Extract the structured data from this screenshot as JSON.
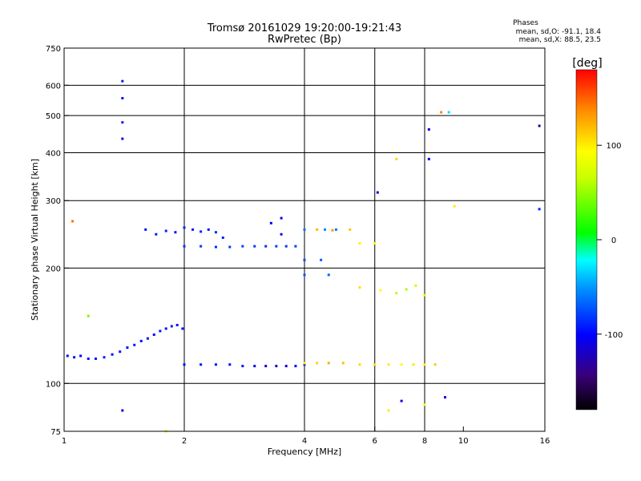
{
  "chart_data": {
    "type": "scatter",
    "title": "Tromsø 20161029 19:20:00-19:21:43",
    "subtitle": "RwPretec (Bp)",
    "xlabel": "Frequency [MHz]",
    "ylabel": "Stationary phase Virtual Height [km]",
    "x_scale": "log2",
    "y_scale": "log",
    "xlim": [
      1,
      16
    ],
    "ylim": [
      75,
      750
    ],
    "x_ticks": [
      1,
      2,
      4,
      6,
      8,
      10,
      16
    ],
    "y_ticks": [
      75,
      100,
      200,
      300,
      400,
      500,
      600,
      750
    ],
    "x_grid": [
      2,
      4,
      6,
      8
    ],
    "y_grid": [
      100,
      200,
      300,
      400,
      500,
      600
    ],
    "grid": true,
    "stats": {
      "heading": "Phases",
      "line_o": "mean, sd,O: -91.1, 18.4",
      "line_x": "mean, sd,X:  88.5, 23.5"
    },
    "colorbar": {
      "label": "[deg]",
      "range": [
        -180,
        180
      ],
      "ticks": [
        "100",
        "0",
        "-100"
      ],
      "tick_values": [
        100,
        0,
        -100
      ],
      "colormap": "rainbow"
    },
    "series": [
      {
        "trace": "O-mode base trace",
        "points": [
          [
            1.02,
            118,
            -96
          ],
          [
            1.06,
            117,
            -94
          ],
          [
            1.1,
            118,
            -100
          ],
          [
            1.15,
            116,
            -97
          ],
          [
            1.2,
            116,
            -95
          ],
          [
            1.26,
            117,
            -90
          ],
          [
            1.32,
            119,
            -98
          ],
          [
            1.38,
            121,
            -93
          ],
          [
            1.44,
            124,
            -99
          ],
          [
            1.5,
            126,
            -92
          ],
          [
            1.56,
            129,
            -96
          ],
          [
            1.62,
            131,
            -94
          ],
          [
            1.68,
            134,
            -97
          ],
          [
            1.74,
            137,
            -93
          ],
          [
            1.8,
            139,
            -95
          ],
          [
            1.86,
            141,
            -91
          ],
          [
            1.92,
            142,
            -98
          ],
          [
            1.98,
            139,
            -94
          ],
          [
            2.0,
            112,
            -97
          ],
          [
            2.2,
            112,
            -95
          ],
          [
            2.4,
            112,
            -93
          ],
          [
            2.6,
            112,
            -96
          ],
          [
            2.8,
            111,
            -94
          ],
          [
            3.0,
            111,
            -104
          ],
          [
            3.2,
            111,
            -115
          ],
          [
            3.4,
            111,
            -120
          ],
          [
            3.6,
            111,
            -112
          ],
          [
            3.8,
            111,
            -100
          ],
          [
            4.0,
            112,
            -94
          ]
        ]
      },
      {
        "trace": "X-mode base trace",
        "points": [
          [
            4.0,
            113,
            100
          ],
          [
            4.3,
            113,
            110
          ],
          [
            4.6,
            113,
            125
          ],
          [
            5.0,
            113,
            118
          ],
          [
            5.5,
            112,
            108
          ],
          [
            6.0,
            112,
            103
          ],
          [
            6.5,
            112,
            100
          ],
          [
            7.0,
            112,
            96
          ],
          [
            7.5,
            112,
            102
          ],
          [
            8.0,
            112,
            98
          ],
          [
            8.5,
            112,
            115
          ]
        ]
      },
      {
        "trace": "Upper layer O-mode",
        "points": [
          [
            2.0,
            228,
            -84
          ],
          [
            2.2,
            228,
            -82
          ],
          [
            2.4,
            227,
            -86
          ],
          [
            2.6,
            227,
            -80
          ],
          [
            2.8,
            228,
            -78
          ],
          [
            3.0,
            228,
            -82
          ],
          [
            3.2,
            228,
            -85
          ],
          [
            3.4,
            228,
            -80
          ],
          [
            3.6,
            228,
            -83
          ],
          [
            3.8,
            228,
            -79
          ],
          [
            4.0,
            252,
            -62
          ],
          [
            4.5,
            252,
            -55
          ],
          [
            4.8,
            252,
            -60
          ],
          [
            4.0,
            192,
            -72
          ],
          [
            4.6,
            192,
            -68
          ],
          [
            4.0,
            210,
            -76
          ],
          [
            4.4,
            210,
            -70
          ]
        ]
      },
      {
        "trace": "Upper layer X-mode",
        "points": [
          [
            4.3,
            252,
            120
          ],
          [
            4.7,
            251,
            130
          ],
          [
            5.2,
            252,
            115
          ],
          [
            5.5,
            232,
            98
          ],
          [
            6.0,
            232,
            92
          ],
          [
            5.5,
            178,
            105
          ],
          [
            6.2,
            175,
            95
          ],
          [
            6.8,
            172,
            62
          ],
          [
            7.2,
            176,
            58
          ],
          [
            7.6,
            180,
            66
          ],
          [
            8.0,
            170,
            72
          ]
        ]
      },
      {
        "trace": "Isolated echoes",
        "points": [
          [
            1.4,
            615,
            -92
          ],
          [
            1.4,
            555,
            -95
          ],
          [
            1.4,
            480,
            -90
          ],
          [
            1.4,
            435,
            -96
          ],
          [
            8.8,
            510,
            140
          ],
          [
            9.2,
            510,
            -30
          ],
          [
            8.2,
            460,
            -110
          ],
          [
            8.2,
            385,
            -108
          ],
          [
            15.5,
            470,
            -140
          ],
          [
            15.5,
            285,
            -90
          ],
          [
            1.05,
            265,
            145
          ],
          [
            1.15,
            150,
            40
          ],
          [
            6.1,
            315,
            -110
          ],
          [
            6.8,
            385,
            110
          ],
          [
            9.5,
            290,
            100
          ],
          [
            1.4,
            85,
            -100
          ],
          [
            1.8,
            75,
            80
          ],
          [
            7.0,
            90,
            -110
          ],
          [
            8.0,
            88,
            90
          ],
          [
            9.0,
            92,
            -110
          ],
          [
            6.5,
            85,
            100
          ]
        ]
      },
      {
        "trace": "Upper scattered O-mode",
        "points": [
          [
            1.6,
            252,
            -95
          ],
          [
            1.7,
            245,
            -92
          ],
          [
            1.8,
            250,
            -90
          ],
          [
            1.9,
            248,
            -96
          ],
          [
            2.0,
            255,
            -88
          ],
          [
            2.1,
            252,
            -92
          ],
          [
            2.2,
            249,
            -89
          ],
          [
            2.3,
            252,
            -94
          ],
          [
            2.4,
            248,
            -87
          ],
          [
            2.5,
            240,
            -90
          ],
          [
            3.3,
            262,
            -100
          ],
          [
            3.5,
            270,
            -104
          ],
          [
            3.5,
            245,
            -98
          ]
        ]
      }
    ]
  }
}
